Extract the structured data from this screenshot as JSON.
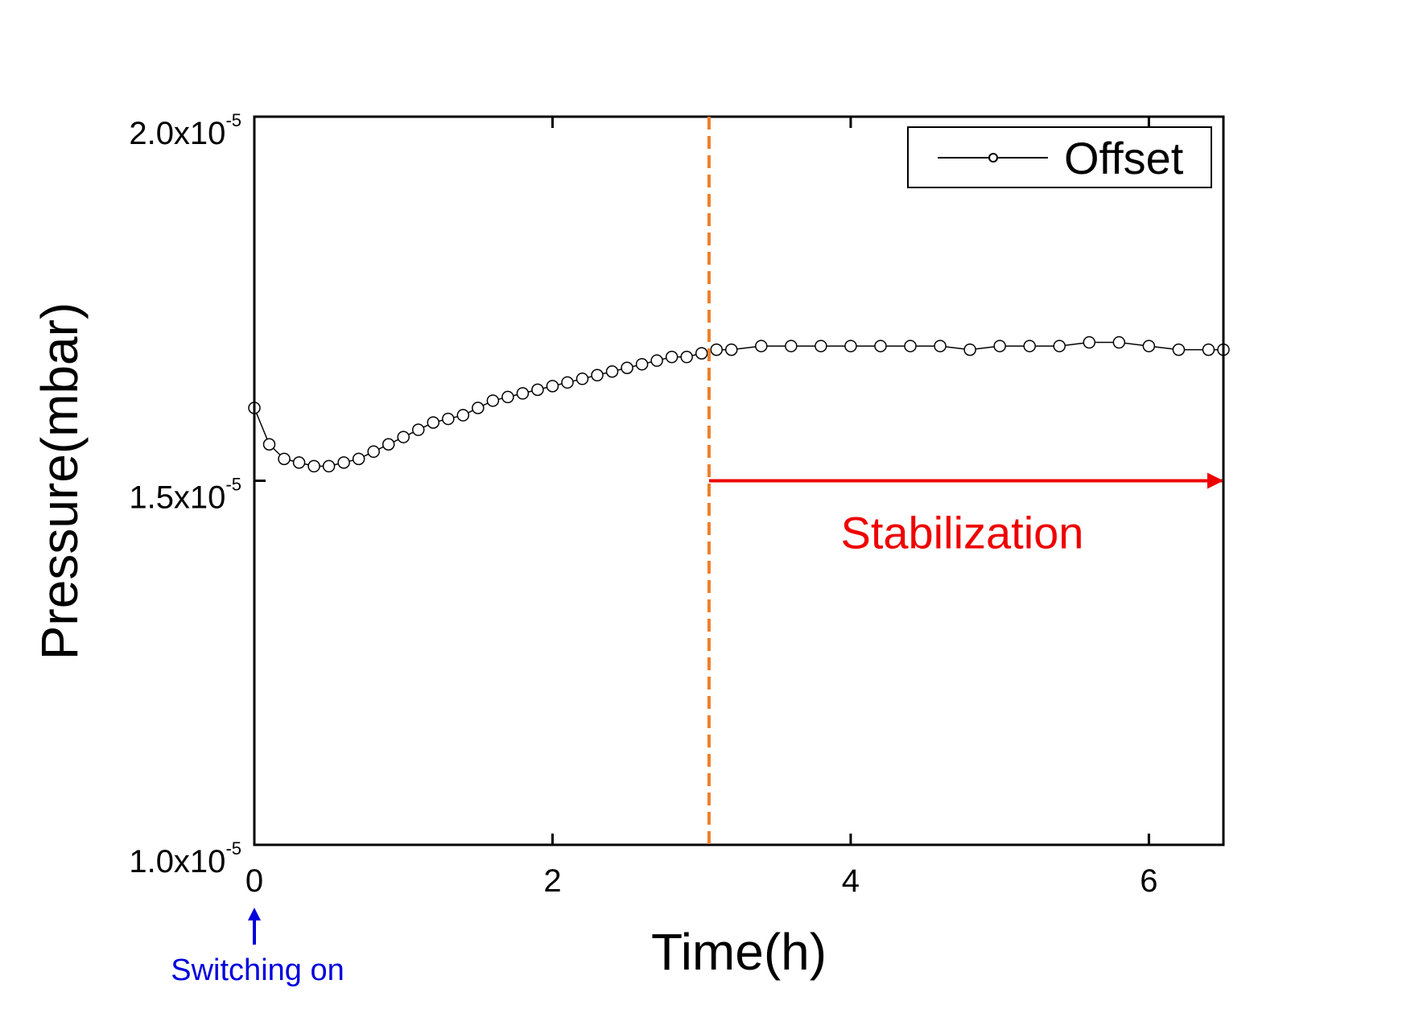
{
  "chart_data": {
    "type": "scatter",
    "title": "",
    "xlabel": "Time(h)",
    "ylabel": "Pressure(mbar)",
    "xlim": [
      0,
      6.5
    ],
    "ylim": [
      1e-05,
      2e-05
    ],
    "xticks": [
      0,
      2,
      4,
      6
    ],
    "xtick_labels": [
      "0",
      "2",
      "4",
      "6"
    ],
    "yticks": [
      1e-05,
      1.5e-05,
      2e-05
    ],
    "ytick_labels": [
      {
        "mantissa": "1.0x10",
        "exponent": "-5"
      },
      {
        "mantissa": "1.5x10",
        "exponent": "-5"
      },
      {
        "mantissa": "2.0x10",
        "exponent": "-5"
      }
    ],
    "grid": false,
    "legend_position": "top-right",
    "series": [
      {
        "name": "Offset",
        "marker": "open-circle",
        "line": true,
        "color": "#000000",
        "x": [
          0,
          0.1,
          0.2,
          0.3,
          0.4,
          0.5,
          0.6,
          0.7,
          0.8,
          0.9,
          1.0,
          1.1,
          1.2,
          1.3,
          1.4,
          1.5,
          1.6,
          1.7,
          1.8,
          1.9,
          2.0,
          2.1,
          2.2,
          2.3,
          2.4,
          2.5,
          2.6,
          2.7,
          2.8,
          2.9,
          3.0,
          3.1,
          3.2,
          3.4,
          3.6,
          3.8,
          4.0,
          4.2,
          4.4,
          4.6,
          4.8,
          5.0,
          5.2,
          5.4,
          5.6,
          5.8,
          6.0,
          6.2,
          6.4,
          6.5
        ],
        "y": [
          1.6e-05,
          1.55e-05,
          1.53e-05,
          1.525e-05,
          1.52e-05,
          1.52e-05,
          1.525e-05,
          1.53e-05,
          1.54e-05,
          1.55e-05,
          1.56e-05,
          1.57e-05,
          1.58e-05,
          1.585e-05,
          1.59e-05,
          1.6e-05,
          1.61e-05,
          1.615e-05,
          1.62e-05,
          1.625e-05,
          1.63e-05,
          1.635e-05,
          1.64e-05,
          1.645e-05,
          1.65e-05,
          1.655e-05,
          1.66e-05,
          1.665e-05,
          1.67e-05,
          1.67e-05,
          1.675e-05,
          1.68e-05,
          1.68e-05,
          1.685e-05,
          1.685e-05,
          1.685e-05,
          1.685e-05,
          1.685e-05,
          1.685e-05,
          1.685e-05,
          1.68e-05,
          1.685e-05,
          1.685e-05,
          1.685e-05,
          1.69e-05,
          1.69e-05,
          1.685e-05,
          1.68e-05,
          1.68e-05,
          1.68e-05
        ]
      }
    ],
    "annotations": {
      "stabilization": {
        "text": "Stabilization",
        "x_start": 3.05,
        "x_end": 6.5,
        "y": 1.5e-05,
        "color": "#ee0000"
      },
      "start_line": {
        "x": 3.05,
        "style": "dashed",
        "color": "#f07f2a"
      },
      "switching_on": {
        "text": "Switching on",
        "x": 0,
        "color": "#0000dd"
      }
    }
  }
}
